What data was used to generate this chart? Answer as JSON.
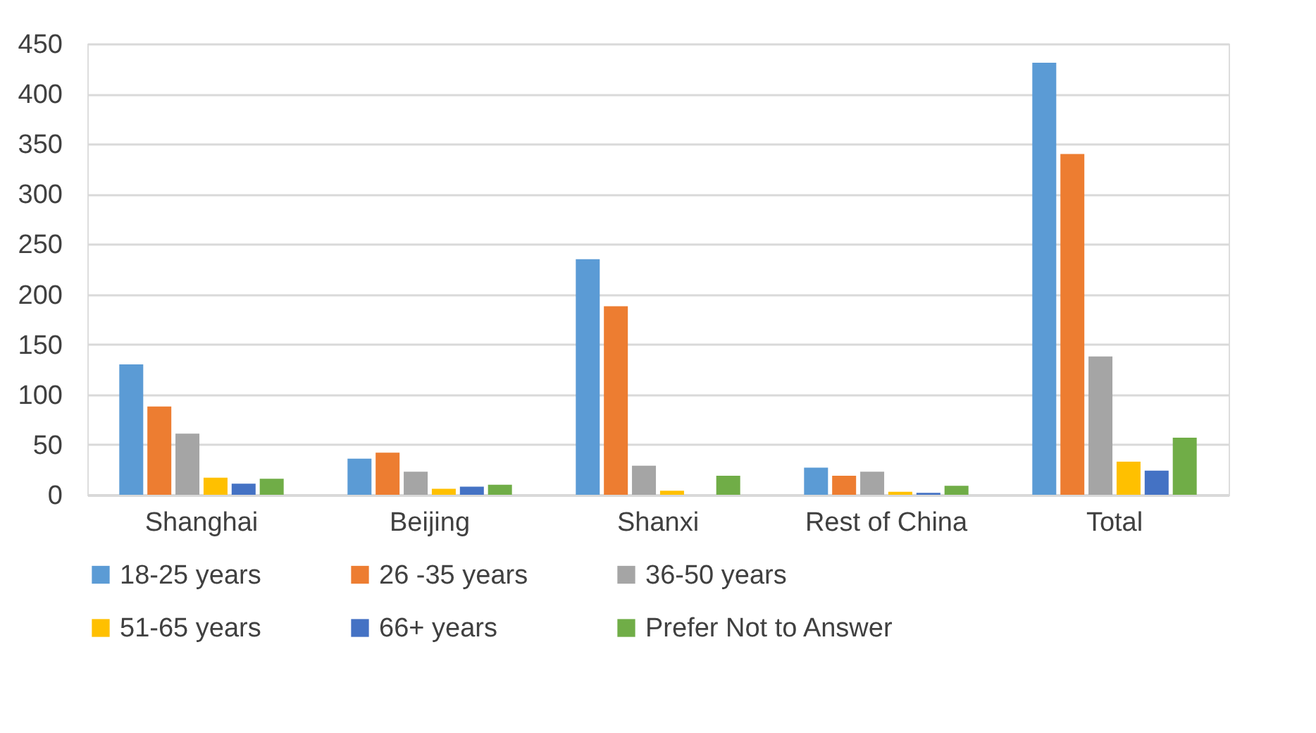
{
  "chart_data": {
    "type": "bar",
    "categories": [
      "Shanghai",
      "Beijing",
      "Shanxi",
      "Rest of China",
      "Total"
    ],
    "series": [
      {
        "name": "18-25 years",
        "color": "#5b9bd5",
        "values": [
          130,
          36,
          235,
          27,
          431
        ]
      },
      {
        "name": "26 -35 years",
        "color": "#ed7d31",
        "values": [
          88,
          42,
          188,
          19,
          340
        ]
      },
      {
        "name": "36-50 years",
        "color": "#a5a5a5",
        "values": [
          61,
          23,
          29,
          23,
          138
        ]
      },
      {
        "name": "51-65 years",
        "color": "#ffc000",
        "values": [
          17,
          6,
          4,
          3,
          33
        ]
      },
      {
        "name": "66+ years",
        "color": "#4472c4",
        "values": [
          11,
          8,
          0,
          2,
          24
        ]
      },
      {
        "name": "Prefer Not to Answer",
        "color": "#70ad47",
        "values": [
          16,
          10,
          19,
          9,
          57
        ]
      }
    ],
    "ylim": [
      0,
      450
    ],
    "yticks": [
      0,
      50,
      100,
      150,
      200,
      250,
      300,
      350,
      400,
      450
    ],
    "grid": "y",
    "legend": "bottom"
  }
}
